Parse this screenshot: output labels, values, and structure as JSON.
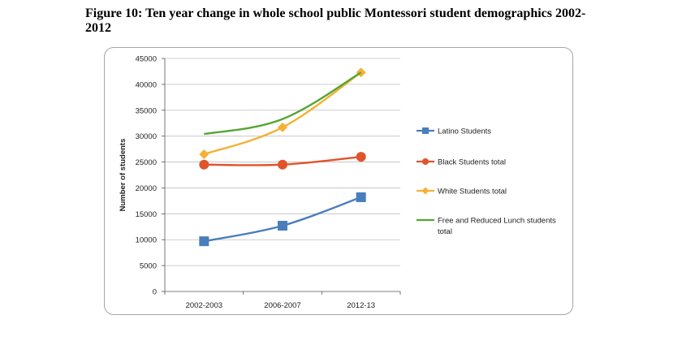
{
  "figure": {
    "title_line1": "Figure 10: Ten year change in whole school public Montessori student demographics 2002-",
    "title_line2": "2012"
  },
  "chart_data": {
    "type": "line",
    "categories": [
      "2002-2003",
      "2006-2007",
      "2012-13"
    ],
    "ylabel": "Number of students",
    "xlabel": "",
    "ylim": [
      0,
      45000
    ],
    "yticks": [
      0,
      5000,
      10000,
      15000,
      20000,
      25000,
      30000,
      35000,
      40000,
      45000
    ],
    "grid": "horizontal",
    "legend_position": "right",
    "series": [
      {
        "name": "Latino Students",
        "values": [
          9700,
          12700,
          18200
        ],
        "color": "#4a7ebb",
        "marker": "square"
      },
      {
        "name": "Black Students total",
        "values": [
          24500,
          24500,
          26000
        ],
        "color": "#e0542b",
        "marker": "circle"
      },
      {
        "name": "White Students total",
        "values": [
          26500,
          31700,
          42300
        ],
        "color": "#f4b135",
        "marker": "diamond"
      },
      {
        "name_line1": "Free and Reduced Lunch students",
        "name_line2": "total",
        "values": [
          30400,
          33300,
          42300
        ],
        "color": "#55a634",
        "marker": "none"
      }
    ]
  }
}
